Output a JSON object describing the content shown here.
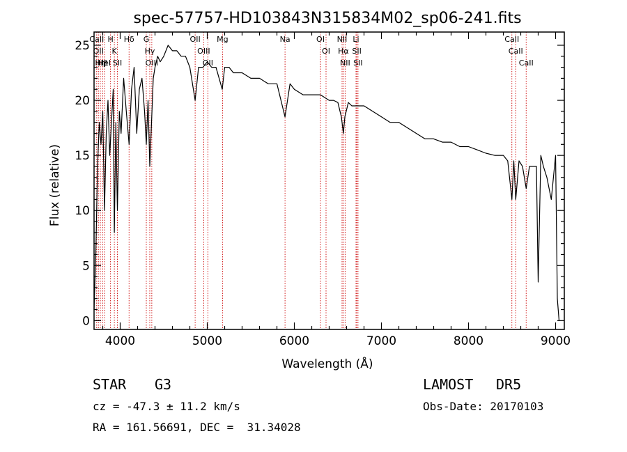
{
  "chart_data": {
    "type": "line",
    "title": "spec-57757-HD103843N315834M02_sp06-241.fits",
    "xlabel": "Wavelength (Å)",
    "ylabel": "Flux (relative)",
    "xlim": [
      3700,
      9100
    ],
    "ylim": [
      -0.8,
      26.2
    ],
    "xticks": [
      4000,
      5000,
      6000,
      7000,
      8000,
      9000
    ],
    "xtick_labels": [
      "4000",
      "5000",
      "6000",
      "7000",
      "8000",
      "9000"
    ],
    "yticks": [
      0,
      5,
      10,
      15,
      20,
      25
    ],
    "ytick_labels": [
      "0",
      "5",
      "10",
      "15",
      "20",
      "25"
    ],
    "grid": false,
    "series": [
      {
        "color": "#000000",
        "x": [
          3700,
          3720,
          3740,
          3760,
          3780,
          3800,
          3820,
          3840,
          3860,
          3880,
          3900,
          3920,
          3933,
          3950,
          3968,
          3990,
          4010,
          4040,
          4070,
          4102,
          4130,
          4160,
          4190,
          4220,
          4250,
          4280,
          4300,
          4320,
          4340,
          4360,
          4380,
          4400,
          4430,
          4460,
          4500,
          4550,
          4600,
          4650,
          4700,
          4750,
          4800,
          4861,
          4900,
          4950,
          5000,
          5050,
          5100,
          5172,
          5200,
          5250,
          5300,
          5400,
          5500,
          5600,
          5700,
          5800,
          5893,
          5950,
          6000,
          6100,
          6200,
          6300,
          6400,
          6450,
          6500,
          6540,
          6563,
          6580,
          6620,
          6660,
          6700,
          6750,
          6800,
          6900,
          7000,
          7100,
          7200,
          7300,
          7400,
          7500,
          7600,
          7700,
          7800,
          7900,
          8000,
          8100,
          8200,
          8300,
          8400,
          8450,
          8498,
          8520,
          8542,
          8580,
          8620,
          8662,
          8700,
          8740,
          8780,
          8800,
          8830,
          8860,
          8900,
          8950,
          9000,
          9020,
          9040
        ],
        "y": [
          1,
          6,
          14,
          18,
          16,
          19,
          10,
          17,
          20,
          15,
          18,
          21,
          8,
          18,
          10,
          19,
          17,
          22,
          19,
          16,
          21,
          23,
          17,
          21,
          22,
          19,
          16,
          20,
          14,
          18,
          22,
          23,
          24,
          23.5,
          24,
          25,
          24.5,
          24.5,
          24,
          24,
          23,
          20,
          23,
          23,
          23.5,
          23,
          23,
          21,
          23,
          23,
          22.5,
          22.5,
          22,
          22,
          21.5,
          21.5,
          18.5,
          21.5,
          21,
          20.5,
          20.5,
          20.5,
          20,
          20,
          19.8,
          18.5,
          17,
          18.5,
          19.8,
          19.5,
          19.5,
          19.5,
          19.5,
          19,
          18.5,
          18,
          18,
          17.5,
          17,
          16.5,
          16.5,
          16.2,
          16.2,
          15.8,
          15.8,
          15.5,
          15.2,
          15,
          15,
          14.5,
          11,
          14.5,
          11,
          14.5,
          14,
          12,
          14,
          14,
          14,
          3.5,
          15,
          14,
          13,
          11,
          15,
          2,
          0
        ]
      }
    ],
    "line_marks": [
      {
        "x": 3730,
        "label": "CaII"
      },
      {
        "x": 3750,
        "label": "OII"
      },
      {
        "x": 3772,
        "label": "Hη"
      },
      {
        "x": 3798,
        "label": "Hβ"
      },
      {
        "x": 3820,
        "label": "HeI"
      },
      {
        "x": 3889,
        "label": "H"
      },
      {
        "x": 3933,
        "label": "K"
      },
      {
        "x": 3968,
        "label": "SII"
      },
      {
        "x": 4102,
        "label": "Hδ"
      },
      {
        "x": 4300,
        "label": "G"
      },
      {
        "x": 4340,
        "label": "Hγ"
      },
      {
        "x": 4363,
        "label": "OIII"
      },
      {
        "x": 4861,
        "label": "OII"
      },
      {
        "x": 4959,
        "label": "OIII"
      },
      {
        "x": 5007,
        "label": "OII"
      },
      {
        "x": 5175,
        "label": "Mg"
      },
      {
        "x": 5893,
        "label": "Na"
      },
      {
        "x": 6300,
        "label": "OI"
      },
      {
        "x": 6364,
        "label": "OI"
      },
      {
        "x": 6548,
        "label": "NII"
      },
      {
        "x": 6563,
        "label": "Hα"
      },
      {
        "x": 6583,
        "label": "NII"
      },
      {
        "x": 6708,
        "label": "Li"
      },
      {
        "x": 6717,
        "label": "SII"
      },
      {
        "x": 6731,
        "label": "SII"
      },
      {
        "x": 8498,
        "label": "CaII"
      },
      {
        "x": 8542,
        "label": "CaII"
      },
      {
        "x": 8662,
        "label": "CaII"
      }
    ]
  },
  "info": {
    "object_type": "STAR",
    "subclass": "G3",
    "survey": "LAMOST",
    "release": "DR5",
    "cz_line": "cz = -47.3 ± 11.2 km/s",
    "obs_date_line": "Obs-Date: 20170103",
    "radec_line": "RA = 161.56691, DEC =  31.34028"
  },
  "colors": {
    "spectrum": "#000000",
    "line_marks": "#cc0000",
    "axes": "#000000",
    "background": "#ffffff"
  }
}
